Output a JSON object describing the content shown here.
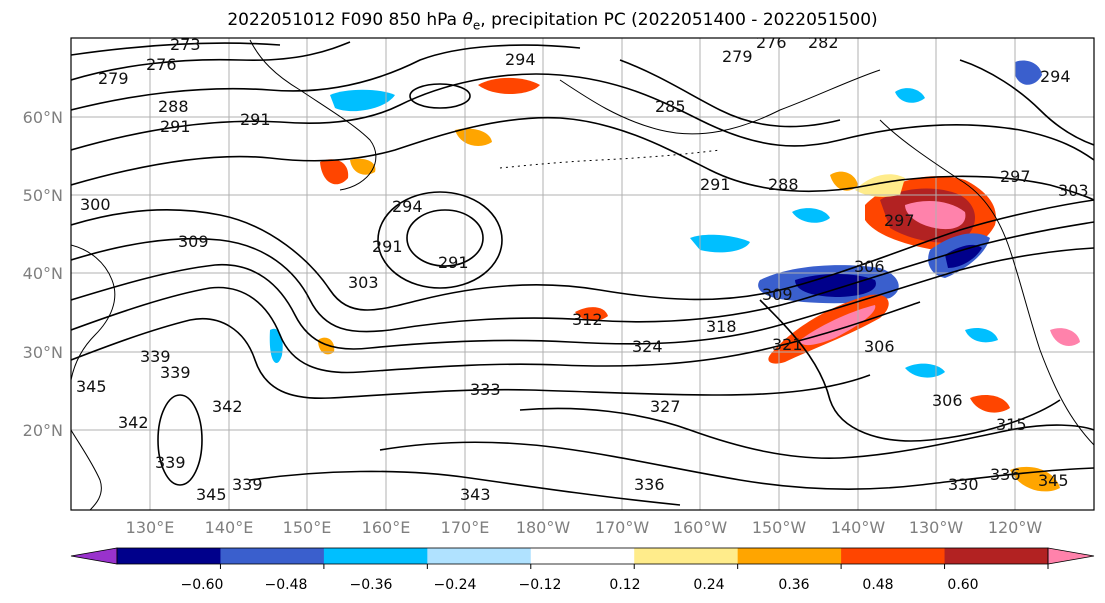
{
  "title_main": "2022051012 F090 850 hPa ",
  "title_symbol": "θ",
  "title_sub": "e",
  "title_rest": ", precipitation PC (2022051400 - 2022051500)",
  "map": {
    "latitude_labels": [
      "60°N",
      "50°N",
      "40°N",
      "30°N",
      "20°N"
    ],
    "longitude_labels": [
      "130°E",
      "140°E",
      "150°E",
      "160°E",
      "170°E",
      "180°W",
      "170°W",
      "160°W",
      "150°W",
      "140°W",
      "130°W",
      "120°W"
    ],
    "theta_e_contour_labels": [
      "273",
      "276",
      "279",
      "279",
      "276",
      "282",
      "288",
      "291",
      "291",
      "294",
      "294",
      "285",
      "291",
      "294",
      "291",
      "288",
      "297",
      "297",
      "291",
      "300",
      "303",
      "309",
      "306",
      "309",
      "303",
      "312",
      "318",
      "321",
      "324",
      "306",
      "333",
      "339",
      "345",
      "342",
      "342",
      "339",
      "327",
      "306",
      "315",
      "336",
      "345",
      "339",
      "339",
      "343",
      "330",
      "336",
      "345"
    ]
  },
  "colorbar": {
    "tick_labels": [
      "−0.60",
      "−0.48",
      "−0.36",
      "−0.24",
      "−0.12",
      "0.12",
      "0.24",
      "0.36",
      "0.48",
      "0.60"
    ],
    "colors": [
      "#9932cc",
      "#00008b",
      "#3a5fcd",
      "#00bfff",
      "#b0e2ff",
      "#ffffff",
      "#ffec8b",
      "#ffa500",
      "#ff4500",
      "#b22222",
      "#ff82ab"
    ]
  }
}
